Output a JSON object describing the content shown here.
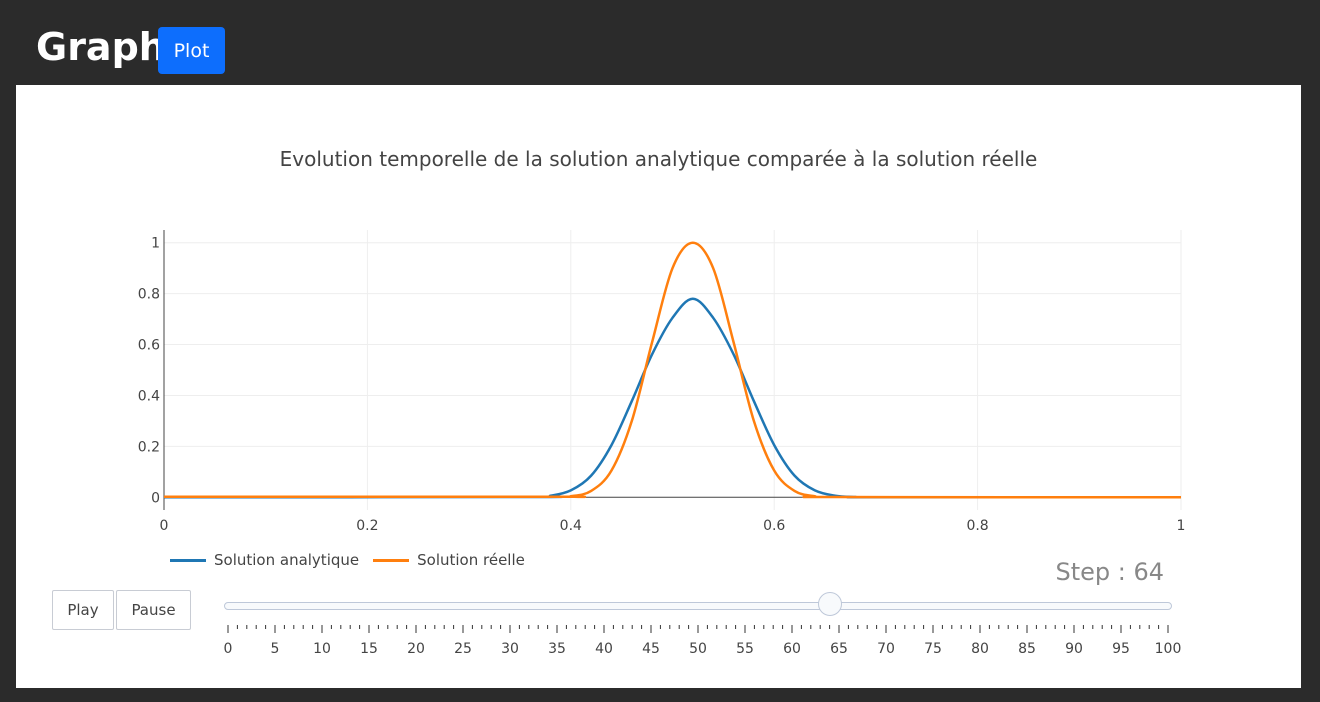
{
  "header": {
    "title": "Graph",
    "plot_button": "Plot"
  },
  "controls": {
    "play": "Play",
    "pause": "Pause",
    "step_prefix": "Step : ",
    "step_value": 64,
    "slider_min": 0,
    "slider_max": 100,
    "slider_labels_every": 5
  },
  "colors": {
    "analytic": "#1f77b4",
    "real": "#ff7f0e",
    "accent": "#0d6efd"
  },
  "chart_data": {
    "type": "line",
    "title": "Evolution temporelle de la solution analytique comparée à la solution réelle",
    "xlabel": "",
    "ylabel": "",
    "xlim": [
      0,
      1
    ],
    "ylim": [
      -0.05,
      1.05
    ],
    "xticks": [
      0,
      0.2,
      0.4,
      0.6,
      0.8,
      1
    ],
    "xtick_labels": [
      "0",
      "0.2",
      "0.4",
      "0.6",
      "0.8",
      "1"
    ],
    "yticks": [
      0,
      0.2,
      0.4,
      0.6,
      0.8,
      1
    ],
    "ytick_labels": [
      "0",
      "0.2",
      "0.4",
      "0.6",
      "0.8",
      "1"
    ],
    "grid": true,
    "legend_position": "bottom-left",
    "series": [
      {
        "name": "Solution analytique",
        "color": "#1f77b4",
        "x": [
          0,
          0.36,
          0.38,
          0.4,
          0.42,
          0.44,
          0.46,
          0.48,
          0.5,
          0.52,
          0.54,
          0.56,
          0.58,
          0.6,
          0.62,
          0.64,
          0.66,
          0.68,
          0.7,
          1.0
        ],
        "y": [
          0,
          0.001,
          0.006,
          0.027,
          0.085,
          0.205,
          0.378,
          0.562,
          0.705,
          0.78,
          0.705,
          0.562,
          0.378,
          0.205,
          0.085,
          0.027,
          0.006,
          0.001,
          0,
          0
        ]
      },
      {
        "name": "Solution réelle",
        "color": "#ff7f0e",
        "x": [
          0,
          0.38,
          0.4,
          0.42,
          0.44,
          0.46,
          0.48,
          0.5,
          0.52,
          0.54,
          0.56,
          0.58,
          0.6,
          0.62,
          0.64,
          0.66,
          1.0
        ],
        "y": [
          0.002,
          0.002,
          0.004,
          0.025,
          0.105,
          0.3,
          0.61,
          0.9,
          1.0,
          0.9,
          0.61,
          0.3,
          0.105,
          0.025,
          0.004,
          0.001,
          0
        ]
      }
    ]
  }
}
